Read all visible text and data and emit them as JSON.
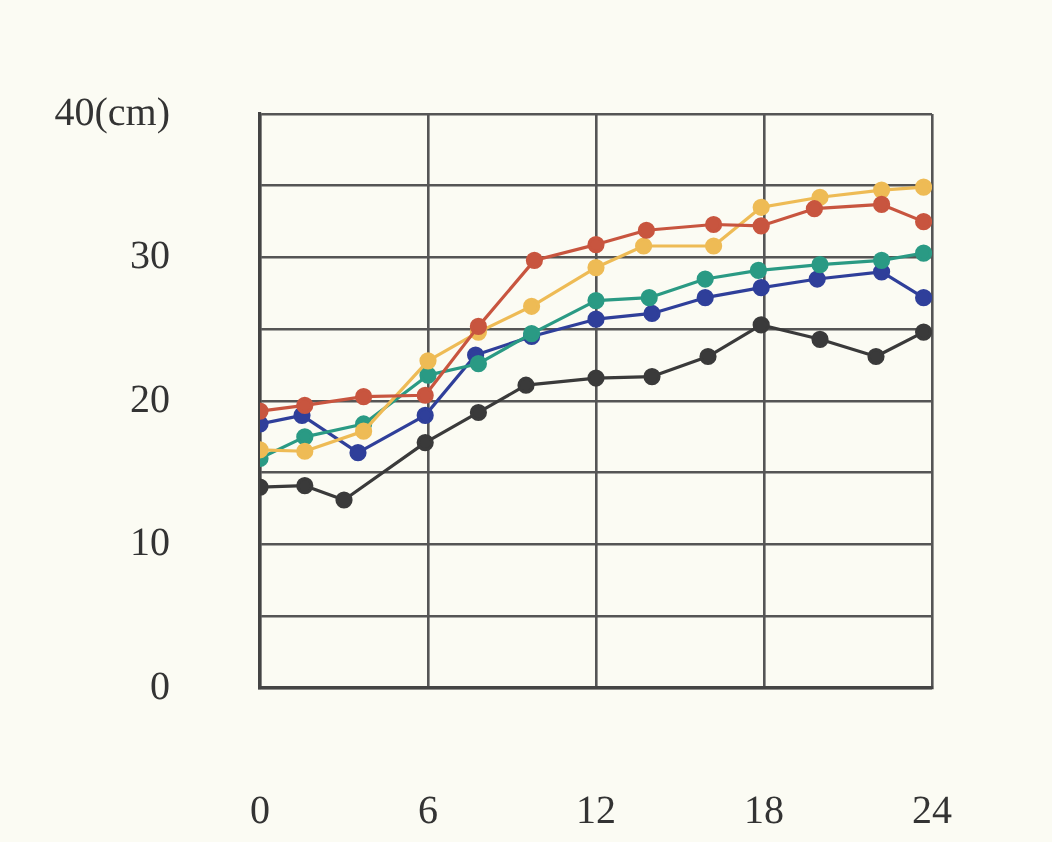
{
  "chart_data": {
    "type": "line",
    "marker": "circle",
    "grid": true,
    "xlim": [
      0,
      24
    ],
    "xticks": [
      0,
      6,
      12,
      18,
      24
    ],
    "ylim": [
      0,
      40
    ],
    "yticks": [
      0,
      {
        "value": 5,
        "label": null
      },
      10,
      {
        "value": 15,
        "label": null
      },
      20,
      {
        "value": 25,
        "label": null
      },
      30,
      {
        "value": 35,
        "label": null
      },
      {
        "value": 40,
        "label": "40(cm)"
      }
    ],
    "series": [
      {
        "color": "#c8553f",
        "x": [
          0,
          1.6,
          3.7,
          5.9,
          7.8,
          9.8,
          12,
          13.8,
          16.2,
          17.9,
          19.8,
          22.2,
          23.7
        ],
        "values": [
          19.3,
          19.7,
          20.3,
          20.4,
          25.2,
          29.8,
          30.9,
          31.9,
          32.3,
          32.2,
          33.4,
          33.7,
          32.5
        ]
      },
      {
        "color": "#eebb55",
        "x": [
          0,
          1.6,
          3.7,
          6,
          7.8,
          9.7,
          12,
          13.7,
          16.2,
          17.9,
          20,
          22.2,
          23.7
        ],
        "values": [
          16.6,
          16.5,
          17.9,
          22.8,
          24.8,
          26.6,
          29.3,
          30.8,
          30.8,
          33.5,
          34.2,
          34.7,
          34.9
        ]
      },
      {
        "color": "#2a9a84",
        "x": [
          0,
          1.6,
          3.7,
          6,
          7.8,
          9.7,
          12,
          13.9,
          15.9,
          17.8,
          20,
          22.2,
          23.7
        ],
        "values": [
          16.0,
          17.5,
          18.4,
          21.8,
          22.6,
          24.7,
          27.0,
          27.2,
          28.5,
          29.1,
          29.5,
          29.8,
          30.3
        ]
      },
      {
        "color": "#2f3f9a",
        "x": [
          0,
          1.5,
          3.5,
          5.9,
          7.7,
          9.7,
          12,
          14,
          15.9,
          17.9,
          19.9,
          22.2,
          23.7
        ],
        "values": [
          18.4,
          19.0,
          16.4,
          19.0,
          23.2,
          24.5,
          25.7,
          26.1,
          27.2,
          27.9,
          28.5,
          29.0,
          27.2
        ]
      },
      {
        "color": "#3a3a3a",
        "x": [
          0,
          1.6,
          3,
          5.9,
          7.8,
          9.5,
          12,
          14,
          16,
          17.9,
          20,
          22,
          23.7
        ],
        "values": [
          14.0,
          14.1,
          13.1,
          17.1,
          19.2,
          21.1,
          21.6,
          21.7,
          23.1,
          25.3,
          24.3,
          23.1,
          24.8
        ]
      }
    ]
  }
}
